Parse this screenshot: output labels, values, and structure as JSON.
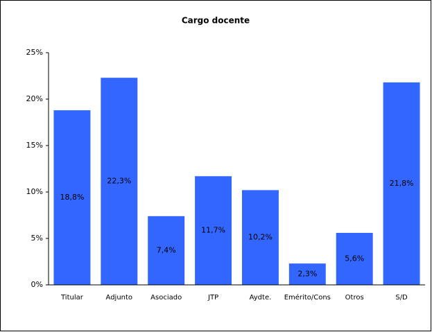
{
  "chart_data": {
    "type": "bar",
    "title": "Cargo docente",
    "categories": [
      "Titular",
      "Adjunto",
      "Asociado",
      "JTP",
      "Aydte.",
      "Emérito/Cons",
      "Otros",
      "S/D"
    ],
    "values": [
      18.8,
      22.3,
      7.4,
      11.7,
      10.2,
      2.3,
      5.6,
      21.8
    ],
    "value_labels": [
      "18,8%",
      "22,3%",
      "7,4%",
      "11,7%",
      "10,2%",
      "2,3%",
      "5,6%",
      "21,8%"
    ],
    "color": "#3366ff",
    "ylim": [
      0,
      25
    ],
    "yticks": [
      {
        "value": 0,
        "label": "0%"
      },
      {
        "value": 5,
        "label": "5%"
      },
      {
        "value": 10,
        "label": "10%"
      },
      {
        "value": 15,
        "label": "15%"
      },
      {
        "value": 20,
        "label": "20%"
      },
      {
        "value": 25,
        "label": "25%"
      }
    ],
    "grid": false
  }
}
